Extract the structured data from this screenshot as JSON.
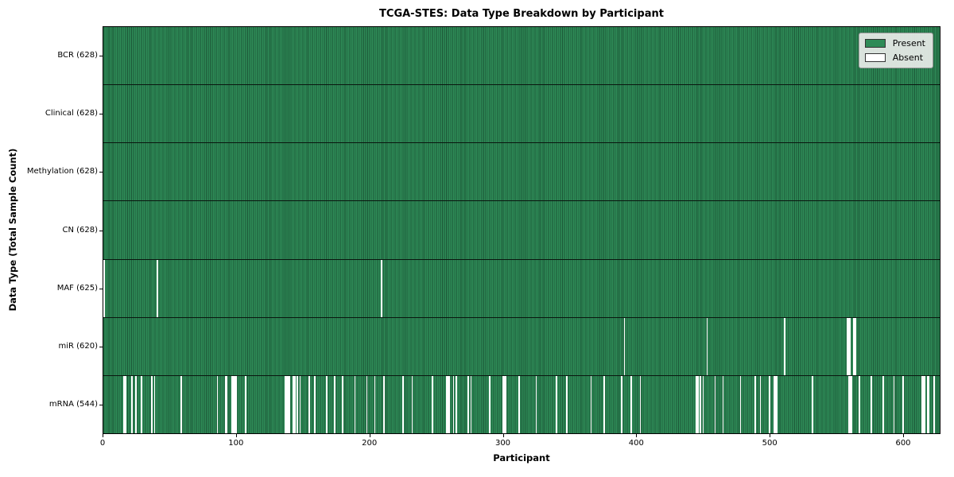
{
  "chart_data": {
    "type": "heatmap",
    "title": "TCGA-STES: Data Type Breakdown by Participant",
    "xlabel": "Participant",
    "ylabel": "Data Type (Total Sample Count)",
    "x_max": 628,
    "x_ticks": [
      0,
      100,
      200,
      300,
      400,
      500,
      600
    ],
    "legend": [
      {
        "label": "Present",
        "color": "#2e8b57"
      },
      {
        "label": "Absent",
        "color": "#ffffff"
      }
    ],
    "colors": {
      "present": "#2e8b57",
      "present_edge": "#1c5737",
      "absent": "#ffffff",
      "separator": "#111111"
    },
    "rows": [
      {
        "label": "BCR (628)",
        "data_type": "BCR",
        "present_count": 628,
        "absent_participants": []
      },
      {
        "label": "Clinical (628)",
        "data_type": "Clinical",
        "present_count": 628,
        "absent_participants": []
      },
      {
        "label": "Methylation (628)",
        "data_type": "Methylation",
        "present_count": 628,
        "absent_participants": []
      },
      {
        "label": "CN (628)",
        "data_type": "CN",
        "present_count": 628,
        "absent_participants": []
      },
      {
        "label": "MAF (625)",
        "data_type": "MAF",
        "present_count": 625,
        "absent_participants": [
          0,
          40,
          208
        ]
      },
      {
        "label": "miR (620)",
        "data_type": "miR",
        "present_count": 620,
        "absent_participants": [
          390,
          452,
          510,
          557,
          558,
          559,
          562,
          563
        ]
      },
      {
        "label": "mRNA (544)",
        "data_type": "mRNA",
        "present_count": 544,
        "absent_participants": [
          15,
          16,
          21,
          24,
          28,
          36,
          38,
          58,
          85,
          91,
          92,
          96,
          97,
          98,
          99,
          106,
          136,
          137,
          138,
          139,
          142,
          143,
          145,
          147,
          154,
          158,
          167,
          173,
          179,
          188,
          197,
          203,
          210,
          224,
          231,
          246,
          257,
          258,
          259,
          262,
          264,
          273,
          275,
          289,
          299,
          300,
          301,
          311,
          324,
          339,
          347,
          365,
          375,
          388,
          395,
          402,
          444,
          445,
          447,
          449,
          458,
          464,
          477,
          488,
          492,
          499,
          502,
          503,
          504,
          531,
          558,
          559,
          560,
          566,
          575,
          584,
          592,
          599,
          613,
          614,
          615,
          617,
          618,
          622
        ]
      }
    ]
  }
}
